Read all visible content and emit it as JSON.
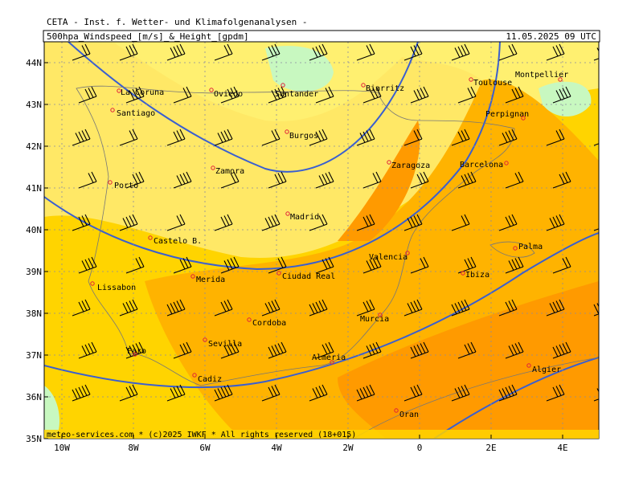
{
  "header": {
    "title": "CETA - Inst. f. Wetter- und Klimafolgenanalysen -",
    "product": "500hpa_Windspeed_[m/s]_&_Height_[gpdm]",
    "valid": "11.05.2025 09 UTC"
  },
  "map": {
    "lat_labels": [
      {
        "value": 44,
        "label": "44N"
      },
      {
        "value": 43,
        "label": "43N"
      },
      {
        "value": 42,
        "label": "42N"
      },
      {
        "value": 41,
        "label": "41N"
      },
      {
        "value": 40,
        "label": "40N"
      },
      {
        "value": 39,
        "label": "39N"
      },
      {
        "value": 38,
        "label": "38N"
      },
      {
        "value": 37,
        "label": "37N"
      },
      {
        "value": 36,
        "label": "36N"
      },
      {
        "value": 35,
        "label": "35N"
      }
    ],
    "lon_labels": [
      {
        "value": -10,
        "label": "10W"
      },
      {
        "value": -8,
        "label": "8W"
      },
      {
        "value": -6,
        "label": "6W"
      },
      {
        "value": -4,
        "label": "4W"
      },
      {
        "value": -2,
        "label": "2W"
      },
      {
        "value": 0,
        "label": "0"
      },
      {
        "value": 2,
        "label": "2E"
      },
      {
        "value": 4,
        "label": "4E"
      }
    ],
    "cities": [
      "La Coruna",
      "Oviedo",
      "Santander",
      "Biarritz",
      "Toulouse",
      "Montpellier",
      "Santiago",
      "Burgos",
      "Perpignan",
      "Zaragoza",
      "Barcelona",
      "Zamora",
      "Porto",
      "Madrid",
      "Castelo B.",
      "Palma",
      "Valencia",
      "Lissabon",
      "Merida",
      "Ciudad Real",
      "Ibiza",
      "Cordoba",
      "Murcia",
      "Faro",
      "Sevilla",
      "Almeria",
      "Cadiz",
      "Algier",
      "Oran"
    ]
  },
  "footer": "meteo-services.com * (c)2025 IWKF * All rights reserved (18+015)"
}
